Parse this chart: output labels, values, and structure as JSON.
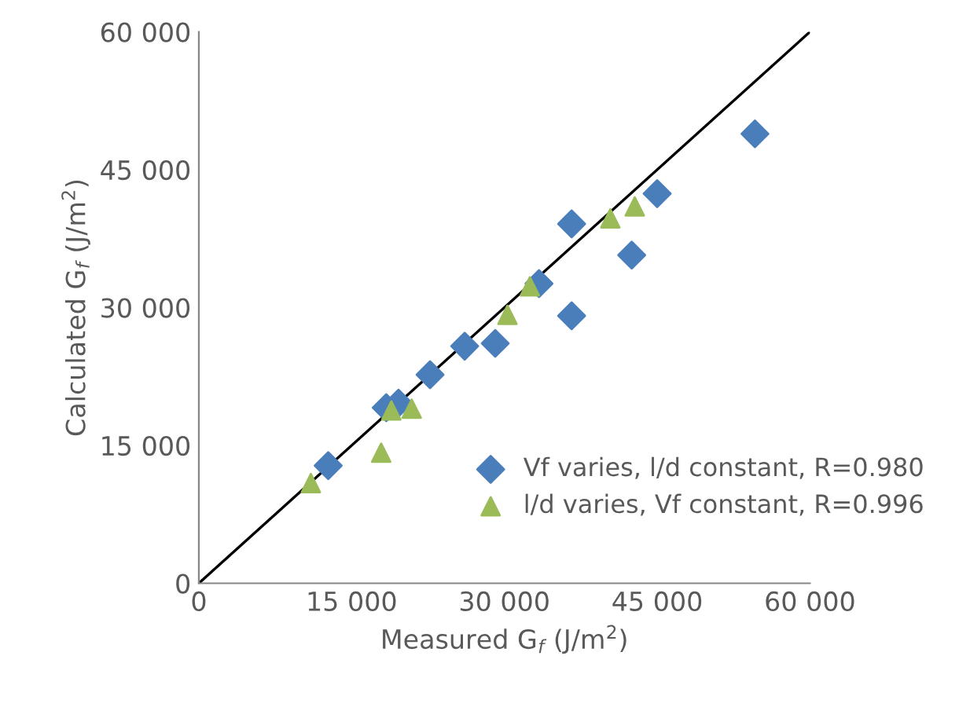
{
  "chart_data": {
    "type": "scatter",
    "xlabel": "Measured G$_{f}$ (J/m$^{2}$)",
    "ylabel": "Calculated G$_{f}$ (J/m$^{2}$)",
    "xlim": [
      0,
      60000
    ],
    "ylim": [
      0,
      60000
    ],
    "xticks": [
      {
        "value": 0,
        "label": "0"
      },
      {
        "value": 15000,
        "label": "15 000"
      },
      {
        "value": 30000,
        "label": "30 000"
      },
      {
        "value": 45000,
        "label": "45 000"
      },
      {
        "value": 60000,
        "label": "60 000"
      }
    ],
    "yticks": [
      {
        "value": 0,
        "label": "0"
      },
      {
        "value": 15000,
        "label": "15 000"
      },
      {
        "value": 30000,
        "label": "30 000"
      },
      {
        "value": 45000,
        "label": "45 000"
      },
      {
        "value": 60000,
        "label": "60 000"
      }
    ],
    "grid": false,
    "legend": "bottom right",
    "series": [
      {
        "name": "Vf varies, l/d constant, R=0.980",
        "color": "#4a7ebb",
        "marker": "diamond",
        "x": [
          12700,
          18400,
          19600,
          22700,
          26100,
          29100,
          33400,
          36600,
          36600,
          42500,
          45000,
          54600
        ],
        "values": [
          12800,
          19100,
          19600,
          22700,
          25800,
          26100,
          32600,
          29100,
          39100,
          35700,
          42400,
          48900
        ]
      },
      {
        "name": "l/d varies, Vf constant, R=0.996",
        "color": "#9bbb59",
        "marker": "triangle",
        "x": [
          11000,
          17900,
          18900,
          20900,
          30300,
          32500,
          40400,
          42800
        ],
        "values": [
          10900,
          14200,
          18800,
          19000,
          29200,
          32300,
          39700,
          41000
        ]
      },
      {
        "type": "line",
        "color": "#000000",
        "marker": "none",
        "x": [
          0,
          60000
        ],
        "values": [
          0,
          60000
        ]
      }
    ]
  }
}
